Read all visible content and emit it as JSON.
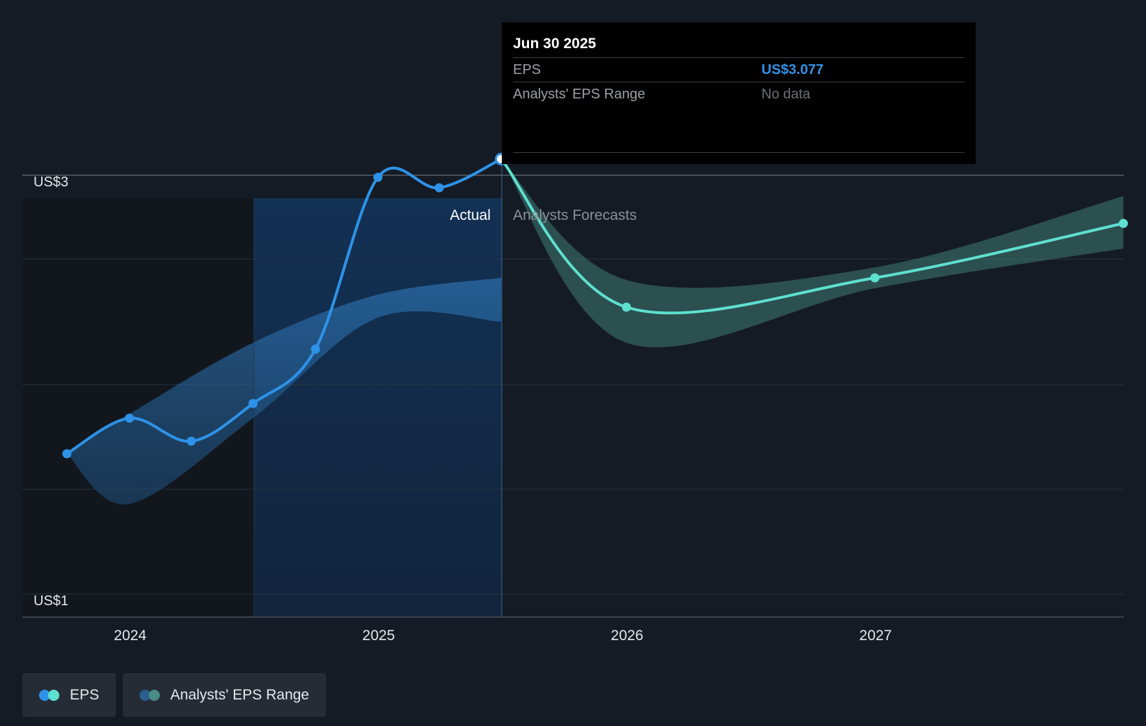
{
  "tooltip": {
    "date": "Jun 30 2025",
    "rows": [
      {
        "label": "EPS",
        "value": "US$3.077"
      },
      {
        "label": "Analysts' EPS Range",
        "value": "No data"
      }
    ]
  },
  "legend": [
    {
      "label": "EPS",
      "colors": [
        "#2e93e8",
        "#5ee0cf"
      ]
    },
    {
      "label": "Analysts' EPS Range",
      "colors": [
        "#2a5f8e",
        "#4a8c85"
      ]
    }
  ],
  "colors": {
    "background": "#151b24",
    "eps_actual": "#2e93e8",
    "eps_forecast": "#5ee0cf",
    "range_past": "#2b6ca8",
    "range_forecast": "#3f7a74"
  },
  "chart_data": {
    "type": "line",
    "ylabel_ticks": [
      "US$3",
      "US$1"
    ],
    "xtick_labels": [
      "2024",
      "2025",
      "2026",
      "2027"
    ],
    "ylim": [
      0.9,
      3.2
    ],
    "divider_label_left": "Actual",
    "divider_label_right": "Analysts Forecasts",
    "series": [
      {
        "name": "EPS",
        "kind": "actual",
        "points": [
          {
            "x": "2023-09-30",
            "y": 1.67
          },
          {
            "x": "2023-12-31",
            "y": 1.84
          },
          {
            "x": "2024-03-31",
            "y": 1.73
          },
          {
            "x": "2024-06-30",
            "y": 1.91
          },
          {
            "x": "2024-09-30",
            "y": 2.17
          },
          {
            "x": "2024-12-31",
            "y": 2.99
          },
          {
            "x": "2025-03-31",
            "y": 2.94
          },
          {
            "x": "2025-06-30",
            "y": 3.077
          }
        ]
      },
      {
        "name": "EPS",
        "kind": "forecast",
        "points": [
          {
            "x": "2025-06-30",
            "y": 3.077
          },
          {
            "x": "2025-12-31",
            "y": 2.37
          },
          {
            "x": "2026-12-31",
            "y": 2.51
          },
          {
            "x": "2027-12-31",
            "y": 2.77
          }
        ]
      }
    ],
    "ranges": [
      {
        "name": "Analysts' EPS Range",
        "kind": "past",
        "upper": [
          {
            "x": "2023-09-30",
            "y": 1.67
          },
          {
            "x": "2023-12-31",
            "y": 1.86
          },
          {
            "x": "2024-06-30",
            "y": 2.2
          },
          {
            "x": "2024-12-31",
            "y": 2.43
          },
          {
            "x": "2025-06-30",
            "y": 2.51
          }
        ],
        "lower": [
          {
            "x": "2023-09-30",
            "y": 1.67
          },
          {
            "x": "2023-12-31",
            "y": 1.43
          },
          {
            "x": "2024-06-30",
            "y": 1.84
          },
          {
            "x": "2024-12-31",
            "y": 2.32
          },
          {
            "x": "2025-06-30",
            "y": 2.3
          }
        ]
      },
      {
        "name": "Analysts' EPS Range",
        "kind": "forecast",
        "upper": [
          {
            "x": "2025-06-30",
            "y": 3.077
          },
          {
            "x": "2025-12-31",
            "y": 2.5
          },
          {
            "x": "2026-12-31",
            "y": 2.56
          },
          {
            "x": "2027-12-31",
            "y": 2.9
          }
        ],
        "lower": [
          {
            "x": "2025-06-30",
            "y": 3.077
          },
          {
            "x": "2025-12-31",
            "y": 2.2
          },
          {
            "x": "2026-12-31",
            "y": 2.46
          },
          {
            "x": "2027-12-31",
            "y": 2.65
          }
        ]
      }
    ],
    "grid": true,
    "legend_position": "bottom-left"
  }
}
